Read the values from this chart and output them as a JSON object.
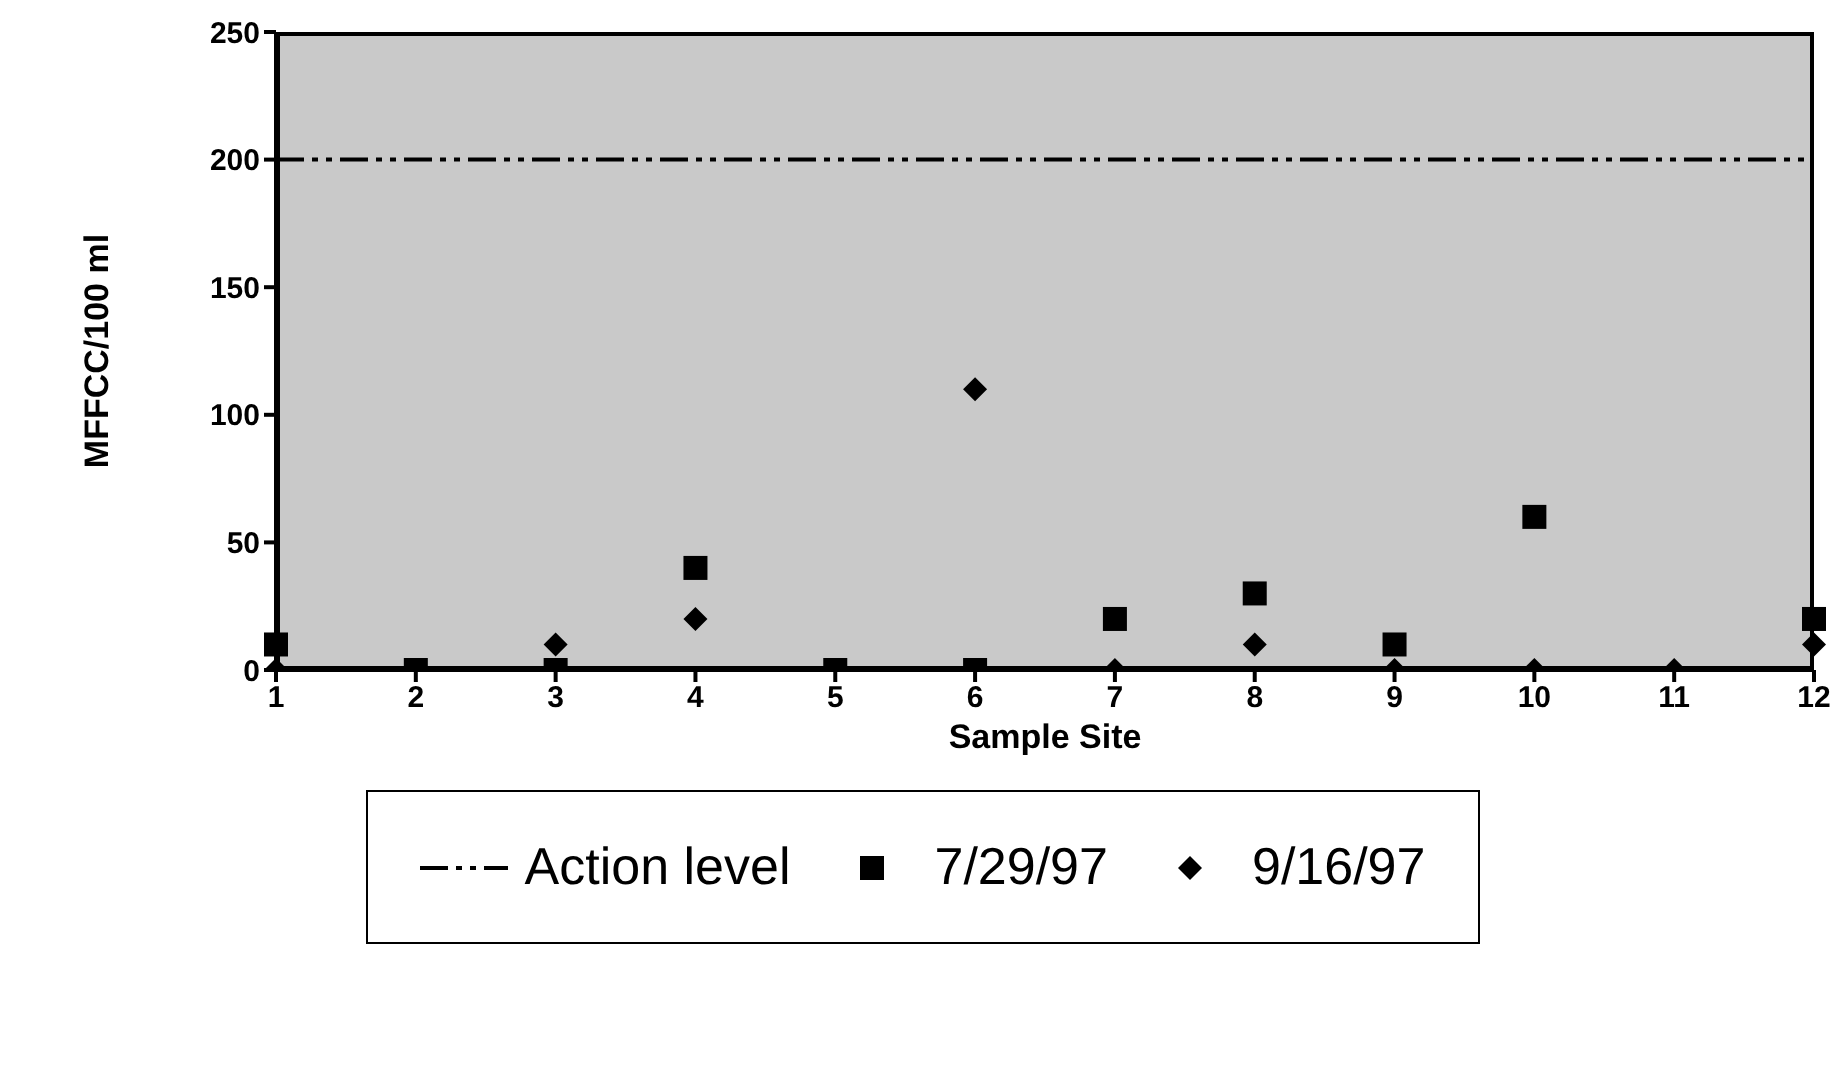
{
  "chart_data": {
    "type": "scatter",
    "xlabel": "Sample Site",
    "ylabel": "MFFCC/100 ml",
    "x": [
      1,
      2,
      3,
      4,
      5,
      6,
      7,
      8,
      9,
      10,
      11,
      12
    ],
    "xlim": [
      1,
      12
    ],
    "xticks": [
      1,
      2,
      3,
      4,
      5,
      6,
      7,
      8,
      9,
      10,
      11,
      12
    ],
    "ylim": [
      0,
      250
    ],
    "yticks": [
      0,
      50,
      100,
      150,
      200,
      250
    ],
    "series": [
      {
        "name": "7/29/97",
        "color": "#000000",
        "marker": "square",
        "values": [
          10,
          0,
          0,
          40,
          0,
          0,
          20,
          30,
          10,
          60,
          null,
          20
        ]
      },
      {
        "name": "9/16/97",
        "color": "#000000",
        "marker": "diamond",
        "values": [
          0,
          null,
          10,
          20,
          null,
          110,
          0,
          10,
          0,
          0,
          0,
          10
        ]
      }
    ],
    "ref_lines": [
      {
        "axis": "y",
        "value": 200,
        "label": "Action level",
        "color": "#000000",
        "line_style": "dashed"
      }
    ],
    "grid": false,
    "legend": "bottom"
  }
}
